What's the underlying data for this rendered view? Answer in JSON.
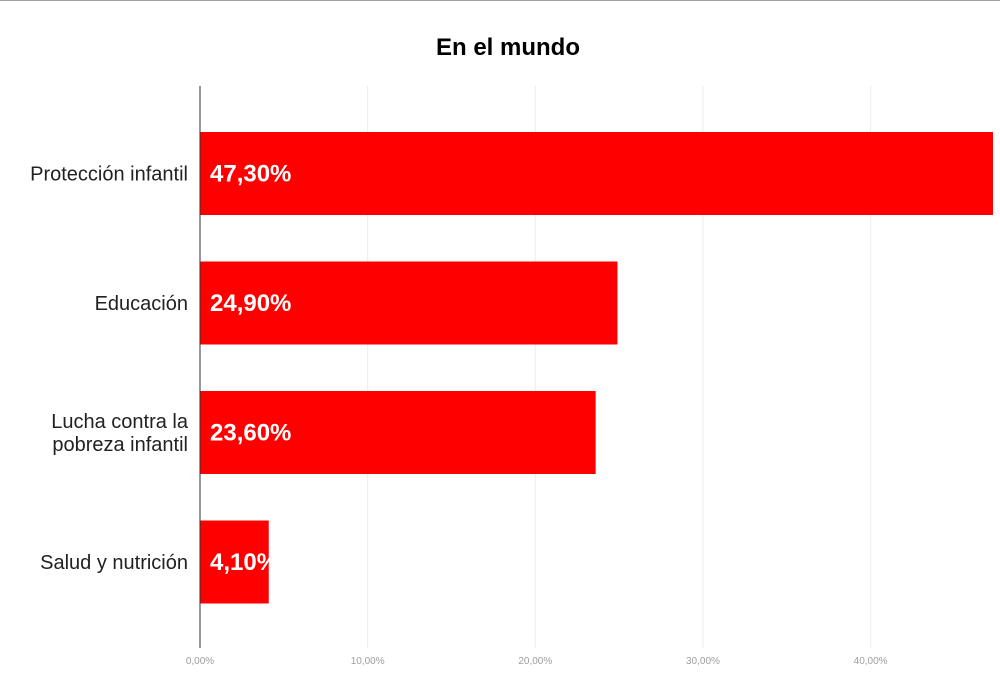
{
  "chart_data": {
    "type": "bar",
    "orientation": "horizontal",
    "title": "En el mundo",
    "categories": [
      [
        "Protección infantil"
      ],
      [
        "Educación"
      ],
      [
        "Lucha contra la",
        "pobreza infantil"
      ],
      [
        "Salud y nutrición"
      ]
    ],
    "values": [
      47.3,
      24.9,
      23.6,
      4.1
    ],
    "data_labels": [
      "47,30%",
      "24,90%",
      "23,60%",
      "4,10%"
    ],
    "x_ticks": [
      0,
      10,
      20,
      30,
      40
    ],
    "x_tick_labels": [
      "0,00%",
      "10,00%",
      "20,00%",
      "30,00%",
      "40,00%"
    ],
    "xlim": [
      0,
      47.3
    ],
    "grid": true,
    "bar_color": "#ff0000",
    "gridline_color": "#ececec",
    "axis_color": "#333333"
  }
}
